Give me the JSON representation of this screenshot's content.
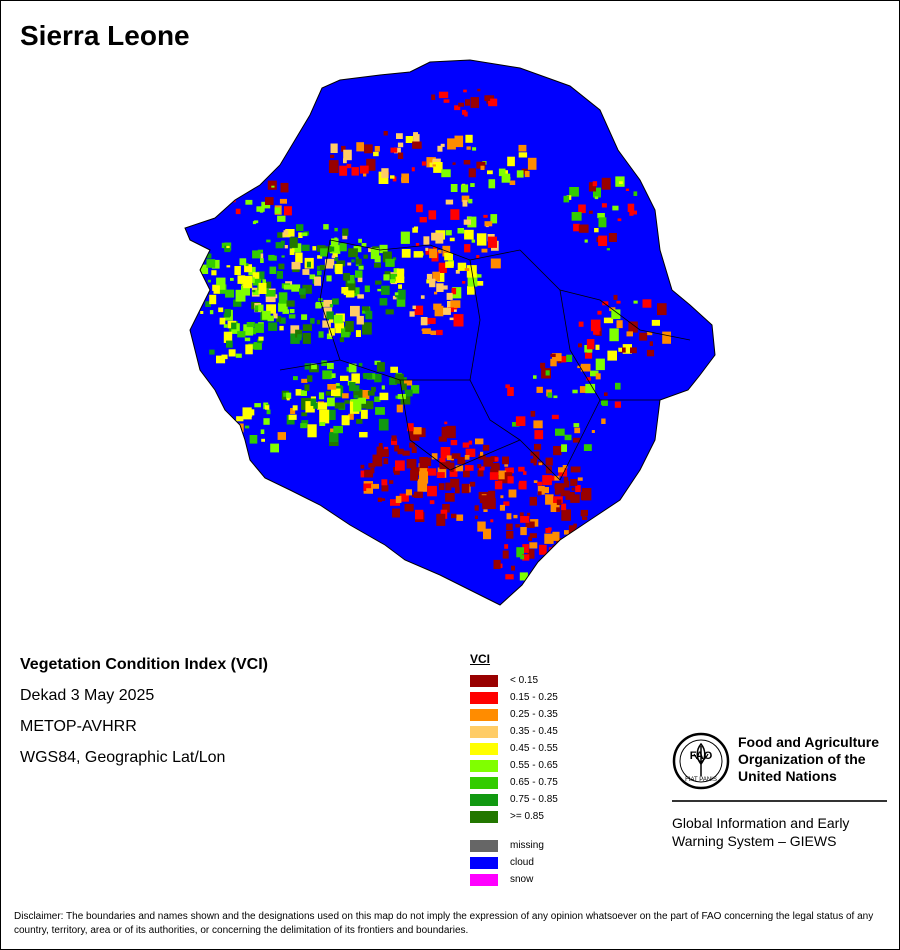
{
  "title": "Sierra Leone",
  "map": {
    "background_color": "#0000ff",
    "boundary_color": "#000000"
  },
  "info": {
    "heading": "Vegetation Condition Index (VCI)",
    "period": "Dekad 3 May 2025",
    "sensor": "METOP-AVHRR",
    "projection": "WGS84, Geographic Lat/Lon"
  },
  "legend": {
    "title": "VCI",
    "classes": [
      {
        "label": "< 0.15",
        "color": "#990000"
      },
      {
        "label": "0.15 - 0.25",
        "color": "#ff0000"
      },
      {
        "label": "0.25 - 0.35",
        "color": "#ff8c00"
      },
      {
        "label": "0.35 - 0.45",
        "color": "#ffcc66"
      },
      {
        "label": "0.45 - 0.55",
        "color": "#ffff00"
      },
      {
        "label": "0.55 - 0.65",
        "color": "#80ff00"
      },
      {
        "label": "0.65 - 0.75",
        "color": "#33cc00"
      },
      {
        "label": "0.75 - 0.85",
        "color": "#119911"
      },
      {
        "label": ">= 0.85",
        "color": "#227700"
      }
    ],
    "other": [
      {
        "label": "missing",
        "color": "#666666"
      },
      {
        "label": "cloud",
        "color": "#0000ff"
      },
      {
        "label": "snow",
        "color": "#ff00ff"
      }
    ]
  },
  "logo": {
    "icon": "fao-emblem-icon",
    "org_name": "Food and Agriculture Organization of the United Nations",
    "emblem_text": "FAO",
    "motto": "FIAT PANIS",
    "system_name": "Global Information and Early Warning System – GIEWS"
  },
  "disclaimer": "Disclaimer: The boundaries and names shown and the designations used on this map do not imply the expression of any opinion whatsoever on the part of FAO concerning the legal status of any country, territory, area or of its authorities, or concerning the delimitation of its frontiers and boundaries."
}
